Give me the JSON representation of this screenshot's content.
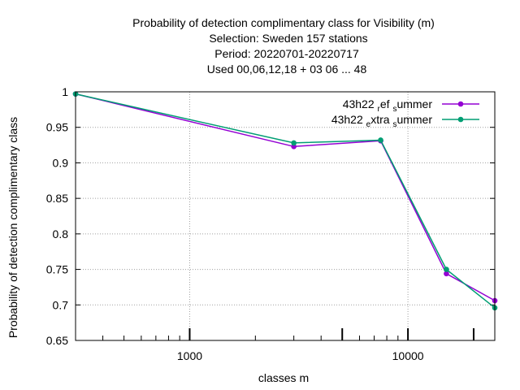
{
  "chart_data": {
    "type": "line",
    "title_lines": [
      "Probability of detection complimentary class  for Visibility (m)",
      "Selection: Sweden    157 stations",
      "Period: 20220701-20220717",
      "Used  00,06,12,18  + 03 06 ... 48"
    ],
    "xlabel": "classes m",
    "ylabel": "Probability of detection complimentary class",
    "x_scale": "log",
    "xlim": [
      300,
      25000
    ],
    "ylim": [
      0.65,
      1.0
    ],
    "x_ticks": [
      {
        "value": 1000,
        "label": "1000"
      },
      {
        "value": 10000,
        "label": "10000"
      }
    ],
    "y_ticks": [
      {
        "value": 0.65,
        "label": "0.65"
      },
      {
        "value": 0.7,
        "label": "0.7"
      },
      {
        "value": 0.75,
        "label": "0.75"
      },
      {
        "value": 0.8,
        "label": "0.8"
      },
      {
        "value": 0.85,
        "label": "0.85"
      },
      {
        "value": 0.9,
        "label": "0.9"
      },
      {
        "value": 0.95,
        "label": "0.95"
      },
      {
        "value": 1.0,
        "label": "1"
      }
    ],
    "grid": true,
    "legend_position": "top-right",
    "series": [
      {
        "name_parts": [
          "43h22",
          "r",
          "ef",
          "s",
          "ummer"
        ],
        "color": "#9400d3",
        "marker": "circle",
        "x": [
          300,
          3000,
          7500,
          15000,
          25000
        ],
        "y": [
          0.997,
          0.923,
          0.931,
          0.744,
          0.706
        ]
      },
      {
        "name_parts": [
          "43h22",
          "e",
          "xtra",
          "s",
          "ummer"
        ],
        "color": "#009e73",
        "marker": "circle",
        "x": [
          300,
          3000,
          7500,
          15000,
          25000
        ],
        "y": [
          0.997,
          0.928,
          0.932,
          0.75,
          0.696
        ]
      }
    ]
  }
}
